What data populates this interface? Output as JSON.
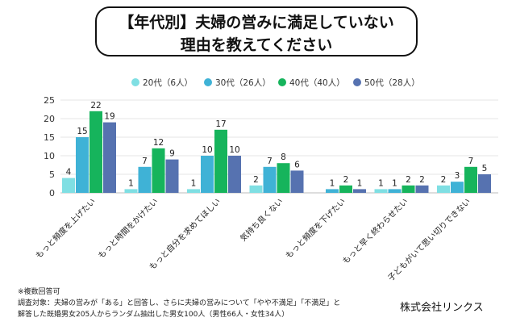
{
  "title_line1": "【年代別】夫婦の営みに満足していない",
  "title_line2": "理由を教えてください",
  "chart_data": {
    "type": "bar",
    "categories": [
      "もっと頻度を上げたい",
      "もっと時間をかけたい",
      "もっと自分を求めてほしい",
      "気持ち良くない",
      "もっと頻度を下げたい",
      "もっと早く終わらせたい",
      "子どもがいて思い切りできない"
    ],
    "series": [
      {
        "name": "20代（6人）",
        "color": "#7fdfe3",
        "values": [
          4,
          1,
          1,
          2,
          0,
          1,
          2
        ]
      },
      {
        "name": "30代（26人）",
        "color": "#3fb2d6",
        "values": [
          15,
          7,
          10,
          7,
          1,
          1,
          3
        ]
      },
      {
        "name": "40代（40人）",
        "color": "#16b45c",
        "values": [
          22,
          12,
          17,
          8,
          2,
          2,
          7
        ]
      },
      {
        "name": "50代（28人）",
        "color": "#5672b0",
        "values": [
          19,
          9,
          10,
          6,
          1,
          2,
          5
        ]
      }
    ],
    "ylim": [
      0,
      25
    ],
    "yticks": [
      0,
      5,
      10,
      15,
      20,
      25
    ],
    "grid": true,
    "legend": "top"
  },
  "notes": {
    "line1": "※複数回答可",
    "line2": "調査対象：夫婦の営みが「ある」と回答し、さらに夫婦の営みについて「やや不満足」「不満足」と",
    "line3": "解答した既婚男女205人からランダム抽出した男女100人（男性66人・女性34人）"
  },
  "company": "株式会社リンクス"
}
